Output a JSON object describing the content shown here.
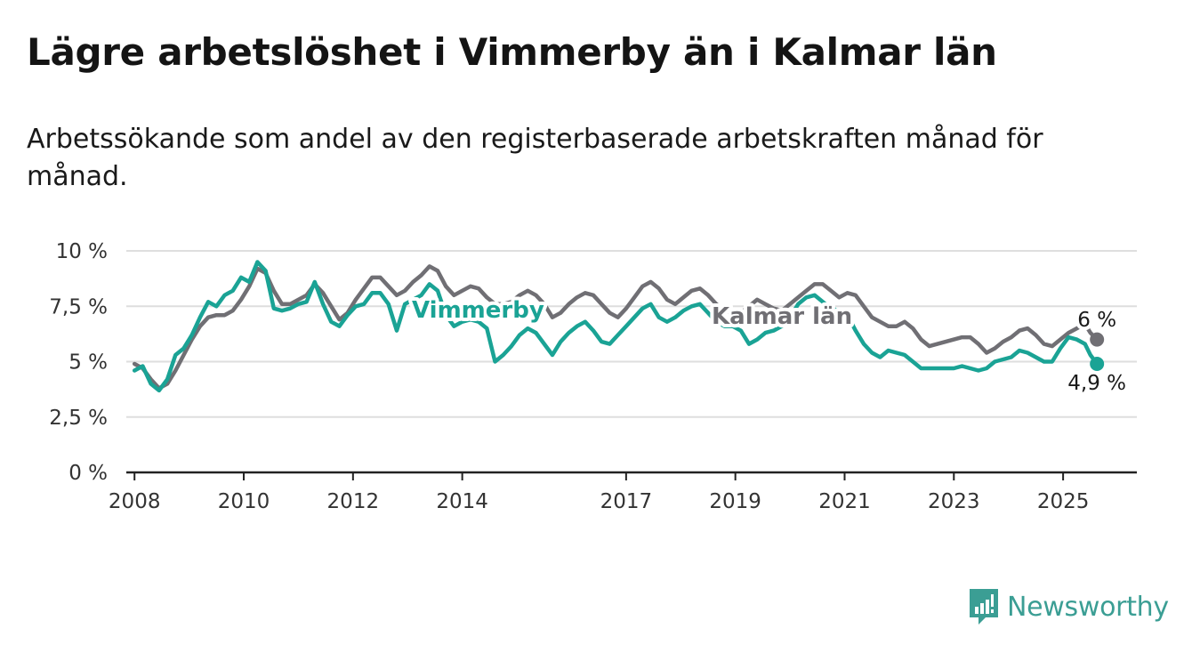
{
  "title": "Lägre arbetslöshet i Vimmerby än i Kalmar län",
  "subtitle": "Arbetssökande som andel av den registerbaserade arbetskraften månad för månad.",
  "brand": {
    "name": "Newsworthy",
    "icon": "newsworthy-logo-icon",
    "color": "#3b9e94"
  },
  "chart_data": {
    "type": "line",
    "title": "Lägre arbetslöshet i Vimmerby än i Kalmar län",
    "subtitle": "Arbetssökande som andel av den registerbaserade arbetskraften månad för månad.",
    "xlabel": "",
    "ylabel": "",
    "xlim": [
      2007.85,
      2026.35
    ],
    "ylim": [
      0,
      10
    ],
    "x_ticks": [
      2008,
      2010,
      2012,
      2014,
      2017,
      2019,
      2021,
      2023,
      2025
    ],
    "x_tick_labels": [
      "2008",
      "2010",
      "2012",
      "2014",
      "2017",
      "2019",
      "2021",
      "2023",
      "2025"
    ],
    "y_ticks": [
      0,
      2.5,
      5,
      7.5,
      10
    ],
    "y_tick_labels": [
      "0 %",
      "2,5 %",
      "5 %",
      "7,5 %",
      "10 %"
    ],
    "grid": true,
    "legend": "direct labels on lines",
    "series": [
      {
        "name": "Kalmar län",
        "color": "#706f74",
        "end_label": "6 %",
        "points": [
          [
            2008.0,
            4.9
          ],
          [
            2008.15,
            4.7
          ],
          [
            2008.3,
            4.2
          ],
          [
            2008.45,
            3.8
          ],
          [
            2008.6,
            4.0
          ],
          [
            2008.75,
            4.6
          ],
          [
            2008.9,
            5.3
          ],
          [
            2009.05,
            6.0
          ],
          [
            2009.2,
            6.6
          ],
          [
            2009.35,
            7.0
          ],
          [
            2009.5,
            7.1
          ],
          [
            2009.65,
            7.1
          ],
          [
            2009.8,
            7.3
          ],
          [
            2009.95,
            7.8
          ],
          [
            2010.1,
            8.4
          ],
          [
            2010.25,
            9.2
          ],
          [
            2010.4,
            9.0
          ],
          [
            2010.55,
            8.2
          ],
          [
            2010.7,
            7.6
          ],
          [
            2010.85,
            7.6
          ],
          [
            2011.0,
            7.8
          ],
          [
            2011.15,
            8.0
          ],
          [
            2011.3,
            8.5
          ],
          [
            2011.45,
            8.1
          ],
          [
            2011.6,
            7.5
          ],
          [
            2011.75,
            6.9
          ],
          [
            2011.9,
            7.2
          ],
          [
            2012.05,
            7.8
          ],
          [
            2012.2,
            8.3
          ],
          [
            2012.35,
            8.8
          ],
          [
            2012.5,
            8.8
          ],
          [
            2012.65,
            8.4
          ],
          [
            2012.8,
            8.0
          ],
          [
            2012.95,
            8.2
          ],
          [
            2013.1,
            8.6
          ],
          [
            2013.25,
            8.9
          ],
          [
            2013.4,
            9.3
          ],
          [
            2013.55,
            9.1
          ],
          [
            2013.7,
            8.4
          ],
          [
            2013.85,
            8.0
          ],
          [
            2014.0,
            8.2
          ],
          [
            2014.15,
            8.4
          ],
          [
            2014.3,
            8.3
          ],
          [
            2014.45,
            7.9
          ],
          [
            2014.6,
            7.6
          ],
          [
            2014.75,
            7.6
          ],
          [
            2014.9,
            7.7
          ],
          [
            2015.05,
            8.0
          ],
          [
            2015.2,
            8.2
          ],
          [
            2015.35,
            8.0
          ],
          [
            2015.5,
            7.6
          ],
          [
            2015.65,
            7.0
          ],
          [
            2015.8,
            7.2
          ],
          [
            2015.95,
            7.6
          ],
          [
            2016.1,
            7.9
          ],
          [
            2016.25,
            8.1
          ],
          [
            2016.4,
            8.0
          ],
          [
            2016.55,
            7.6
          ],
          [
            2016.7,
            7.2
          ],
          [
            2016.85,
            7.0
          ],
          [
            2017.0,
            7.4
          ],
          [
            2017.15,
            7.9
          ],
          [
            2017.3,
            8.4
          ],
          [
            2017.45,
            8.6
          ],
          [
            2017.6,
            8.3
          ],
          [
            2017.75,
            7.8
          ],
          [
            2017.9,
            7.6
          ],
          [
            2018.05,
            7.9
          ],
          [
            2018.2,
            8.2
          ],
          [
            2018.35,
            8.3
          ],
          [
            2018.5,
            8.0
          ],
          [
            2018.65,
            7.6
          ],
          [
            2018.8,
            7.3
          ],
          [
            2018.95,
            7.2
          ],
          [
            2019.1,
            7.2
          ],
          [
            2019.25,
            7.5
          ],
          [
            2019.4,
            7.8
          ],
          [
            2019.55,
            7.6
          ],
          [
            2019.7,
            7.4
          ],
          [
            2019.85,
            7.3
          ],
          [
            2020.0,
            7.6
          ],
          [
            2020.15,
            7.9
          ],
          [
            2020.3,
            8.2
          ],
          [
            2020.45,
            8.5
          ],
          [
            2020.6,
            8.5
          ],
          [
            2020.75,
            8.2
          ],
          [
            2020.9,
            7.9
          ],
          [
            2021.05,
            8.1
          ],
          [
            2021.2,
            8.0
          ],
          [
            2021.35,
            7.5
          ],
          [
            2021.5,
            7.0
          ],
          [
            2021.65,
            6.8
          ],
          [
            2021.8,
            6.6
          ],
          [
            2021.95,
            6.6
          ],
          [
            2022.1,
            6.8
          ],
          [
            2022.25,
            6.5
          ],
          [
            2022.4,
            6.0
          ],
          [
            2022.55,
            5.7
          ],
          [
            2022.7,
            5.8
          ],
          [
            2022.85,
            5.9
          ],
          [
            2023.0,
            6.0
          ],
          [
            2023.15,
            6.1
          ],
          [
            2023.3,
            6.1
          ],
          [
            2023.45,
            5.8
          ],
          [
            2023.6,
            5.4
          ],
          [
            2023.75,
            5.6
          ],
          [
            2023.9,
            5.9
          ],
          [
            2024.05,
            6.1
          ],
          [
            2024.2,
            6.4
          ],
          [
            2024.35,
            6.5
          ],
          [
            2024.5,
            6.2
          ],
          [
            2024.65,
            5.8
          ],
          [
            2024.8,
            5.7
          ],
          [
            2024.95,
            6.0
          ],
          [
            2025.1,
            6.3
          ],
          [
            2025.25,
            6.5
          ],
          [
            2025.4,
            6.7
          ],
          [
            2025.5,
            6.3
          ],
          [
            2025.62,
            6.0
          ]
        ]
      },
      {
        "name": "Vimmerby",
        "color": "#1aa395",
        "end_label": "4,9 %",
        "points": [
          [
            2008.0,
            4.6
          ],
          [
            2008.15,
            4.8
          ],
          [
            2008.3,
            4.0
          ],
          [
            2008.45,
            3.7
          ],
          [
            2008.6,
            4.2
          ],
          [
            2008.75,
            5.3
          ],
          [
            2008.9,
            5.6
          ],
          [
            2009.05,
            6.2
          ],
          [
            2009.2,
            7.0
          ],
          [
            2009.35,
            7.7
          ],
          [
            2009.5,
            7.5
          ],
          [
            2009.65,
            8.0
          ],
          [
            2009.8,
            8.2
          ],
          [
            2009.95,
            8.8
          ],
          [
            2010.1,
            8.6
          ],
          [
            2010.25,
            9.5
          ],
          [
            2010.4,
            9.1
          ],
          [
            2010.55,
            7.4
          ],
          [
            2010.7,
            7.3
          ],
          [
            2010.85,
            7.4
          ],
          [
            2011.0,
            7.6
          ],
          [
            2011.15,
            7.7
          ],
          [
            2011.3,
            8.6
          ],
          [
            2011.45,
            7.6
          ],
          [
            2011.6,
            6.8
          ],
          [
            2011.75,
            6.6
          ],
          [
            2011.9,
            7.1
          ],
          [
            2012.05,
            7.5
          ],
          [
            2012.2,
            7.6
          ],
          [
            2012.35,
            8.1
          ],
          [
            2012.5,
            8.1
          ],
          [
            2012.65,
            7.6
          ],
          [
            2012.8,
            6.4
          ],
          [
            2012.95,
            7.6
          ],
          [
            2013.1,
            7.8
          ],
          [
            2013.25,
            8.0
          ],
          [
            2013.4,
            8.5
          ],
          [
            2013.55,
            8.2
          ],
          [
            2013.7,
            7.1
          ],
          [
            2013.85,
            6.6
          ],
          [
            2014.0,
            6.8
          ],
          [
            2014.15,
            6.9
          ],
          [
            2014.3,
            6.8
          ],
          [
            2014.45,
            6.5
          ],
          [
            2014.6,
            5.0
          ],
          [
            2014.75,
            5.3
          ],
          [
            2014.9,
            5.7
          ],
          [
            2015.05,
            6.2
          ],
          [
            2015.2,
            6.5
          ],
          [
            2015.35,
            6.3
          ],
          [
            2015.5,
            5.8
          ],
          [
            2015.65,
            5.3
          ],
          [
            2015.8,
            5.9
          ],
          [
            2015.95,
            6.3
          ],
          [
            2016.1,
            6.6
          ],
          [
            2016.25,
            6.8
          ],
          [
            2016.4,
            6.4
          ],
          [
            2016.55,
            5.9
          ],
          [
            2016.7,
            5.8
          ],
          [
            2016.85,
            6.2
          ],
          [
            2017.0,
            6.6
          ],
          [
            2017.15,
            7.0
          ],
          [
            2017.3,
            7.4
          ],
          [
            2017.45,
            7.6
          ],
          [
            2017.6,
            7.0
          ],
          [
            2017.75,
            6.8
          ],
          [
            2017.9,
            7.0
          ],
          [
            2018.05,
            7.3
          ],
          [
            2018.2,
            7.5
          ],
          [
            2018.35,
            7.6
          ],
          [
            2018.5,
            7.2
          ],
          [
            2018.65,
            6.8
          ],
          [
            2018.8,
            6.6
          ],
          [
            2018.95,
            6.6
          ],
          [
            2019.1,
            6.4
          ],
          [
            2019.25,
            5.8
          ],
          [
            2019.4,
            6.0
          ],
          [
            2019.55,
            6.3
          ],
          [
            2019.7,
            6.4
          ],
          [
            2019.85,
            6.6
          ],
          [
            2020.0,
            7.0
          ],
          [
            2020.15,
            7.6
          ],
          [
            2020.3,
            7.9
          ],
          [
            2020.45,
            8.0
          ],
          [
            2020.6,
            7.7
          ],
          [
            2020.75,
            7.4
          ],
          [
            2020.9,
            7.3
          ],
          [
            2021.05,
            7.1
          ],
          [
            2021.2,
            6.4
          ],
          [
            2021.35,
            5.8
          ],
          [
            2021.5,
            5.4
          ],
          [
            2021.65,
            5.2
          ],
          [
            2021.8,
            5.5
          ],
          [
            2021.95,
            5.4
          ],
          [
            2022.1,
            5.3
          ],
          [
            2022.25,
            5.0
          ],
          [
            2022.4,
            4.7
          ],
          [
            2022.55,
            4.7
          ],
          [
            2022.7,
            4.7
          ],
          [
            2022.85,
            4.7
          ],
          [
            2023.0,
            4.7
          ],
          [
            2023.15,
            4.8
          ],
          [
            2023.3,
            4.7
          ],
          [
            2023.45,
            4.6
          ],
          [
            2023.6,
            4.7
          ],
          [
            2023.75,
            5.0
          ],
          [
            2023.9,
            5.1
          ],
          [
            2024.05,
            5.2
          ],
          [
            2024.2,
            5.5
          ],
          [
            2024.35,
            5.4
          ],
          [
            2024.5,
            5.2
          ],
          [
            2024.65,
            5.0
          ],
          [
            2024.8,
            5.0
          ],
          [
            2024.95,
            5.6
          ],
          [
            2025.1,
            6.1
          ],
          [
            2025.25,
            6.0
          ],
          [
            2025.4,
            5.8
          ],
          [
            2025.5,
            5.3
          ],
          [
            2025.62,
            4.9
          ]
        ]
      }
    ]
  }
}
